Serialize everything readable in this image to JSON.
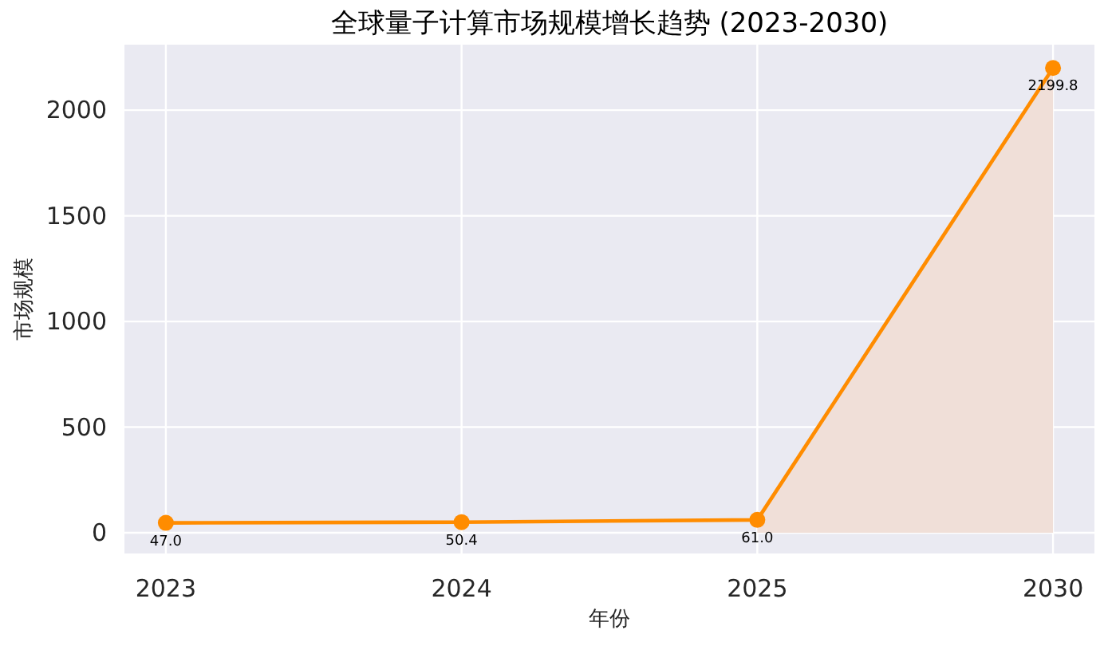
{
  "chart_data": {
    "type": "line",
    "title": "全球量子计算市场规模增长趋势 (2023-2030)",
    "xlabel": "年份",
    "ylabel": "市场规模",
    "categories": [
      "2023",
      "2024",
      "2025",
      "2030"
    ],
    "series": [
      {
        "type": "area",
        "color": "#f0dfd8",
        "values": [
          null,
          null,
          61.0,
          2199.8
        ]
      },
      {
        "marker": "circle",
        "color": "#ff8c00",
        "values": [
          47.0,
          50.4,
          61.0,
          2199.8
        ],
        "value_labels": [
          "47.0",
          "50.4",
          "61.0",
          "2199.8"
        ]
      }
    ],
    "ylim": [
      -98,
      2310
    ],
    "yticks": [
      0,
      500,
      1000,
      1500,
      2000
    ],
    "grid": true,
    "line_style": "solid"
  }
}
